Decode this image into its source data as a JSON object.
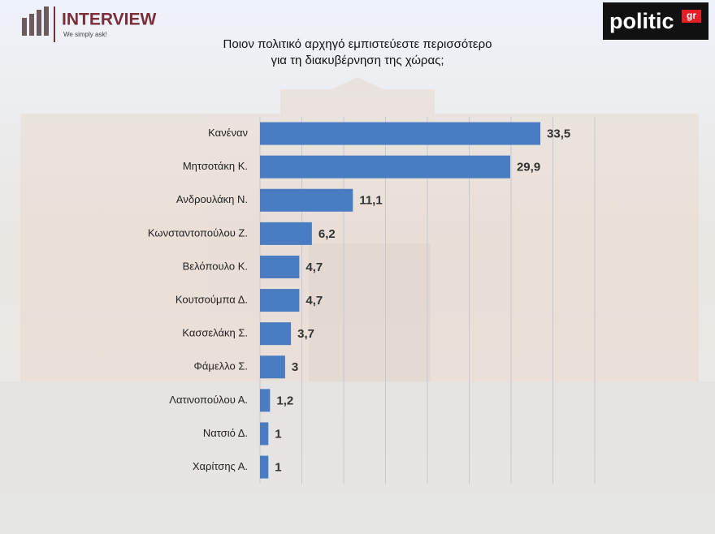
{
  "header": {
    "brand": "INTERVIEW",
    "tagline": "We simply ask!",
    "source": "politic",
    "source_suffix": "gr"
  },
  "chart_data": {
    "type": "bar",
    "orientation": "horizontal",
    "title": [
      "Ποιον πολιτικό αρχηγό εμπιστεύεστε περισσότερο",
      "για τη διακυβέρνηση της χώρας;"
    ],
    "categories": [
      "Κανέναν",
      "Μητσοτάκη Κ.",
      "Ανδρουλάκη Ν.",
      "Κωνσταντοπούλου Ζ.",
      "Βελόπουλο Κ.",
      "Κουτσούμπα Δ.",
      "Κασσελάκη Σ.",
      "Φάμελλο Σ.",
      "Λατινοπούλου Α.",
      "Νατσιό Δ.",
      "Χαρίτσης Α."
    ],
    "values": [
      33.5,
      29.9,
      11.1,
      6.2,
      4.7,
      4.7,
      3.7,
      3,
      1.2,
      1,
      1
    ],
    "value_labels": [
      "33,5",
      "29,9",
      "11,1",
      "6,2",
      "4,7",
      "4,7",
      "3,7",
      "3",
      "1,2",
      "1",
      "1"
    ],
    "color": "#4a7cc2",
    "xlim": [
      0,
      40
    ],
    "xticks": [
      0,
      5,
      10,
      15,
      20,
      25,
      30,
      35,
      40
    ],
    "grid": true
  }
}
